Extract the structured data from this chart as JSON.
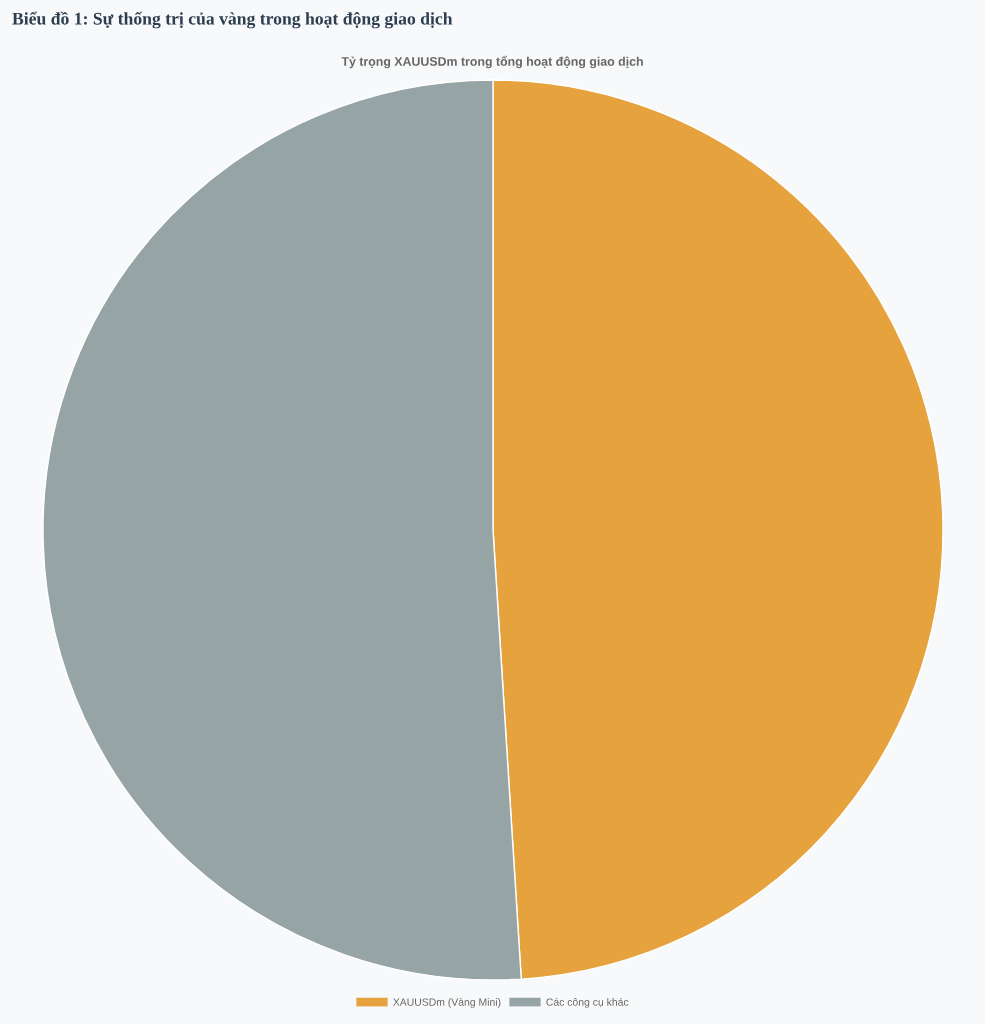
{
  "chart_data": {
    "type": "pie",
    "title": "Biểu đồ 1: Sự thống trị của vàng trong hoạt động giao dịch",
    "subtitle": "Tỷ trọng XAUUSDm trong tổng hoạt động giao dịch",
    "categories": [
      "XAUUSDm (Vàng Mini)",
      "Các công cụ khác"
    ],
    "values": [
      49,
      51
    ],
    "colors": [
      "#e6a23c",
      "#97a4a5"
    ],
    "legend": "bottom"
  }
}
